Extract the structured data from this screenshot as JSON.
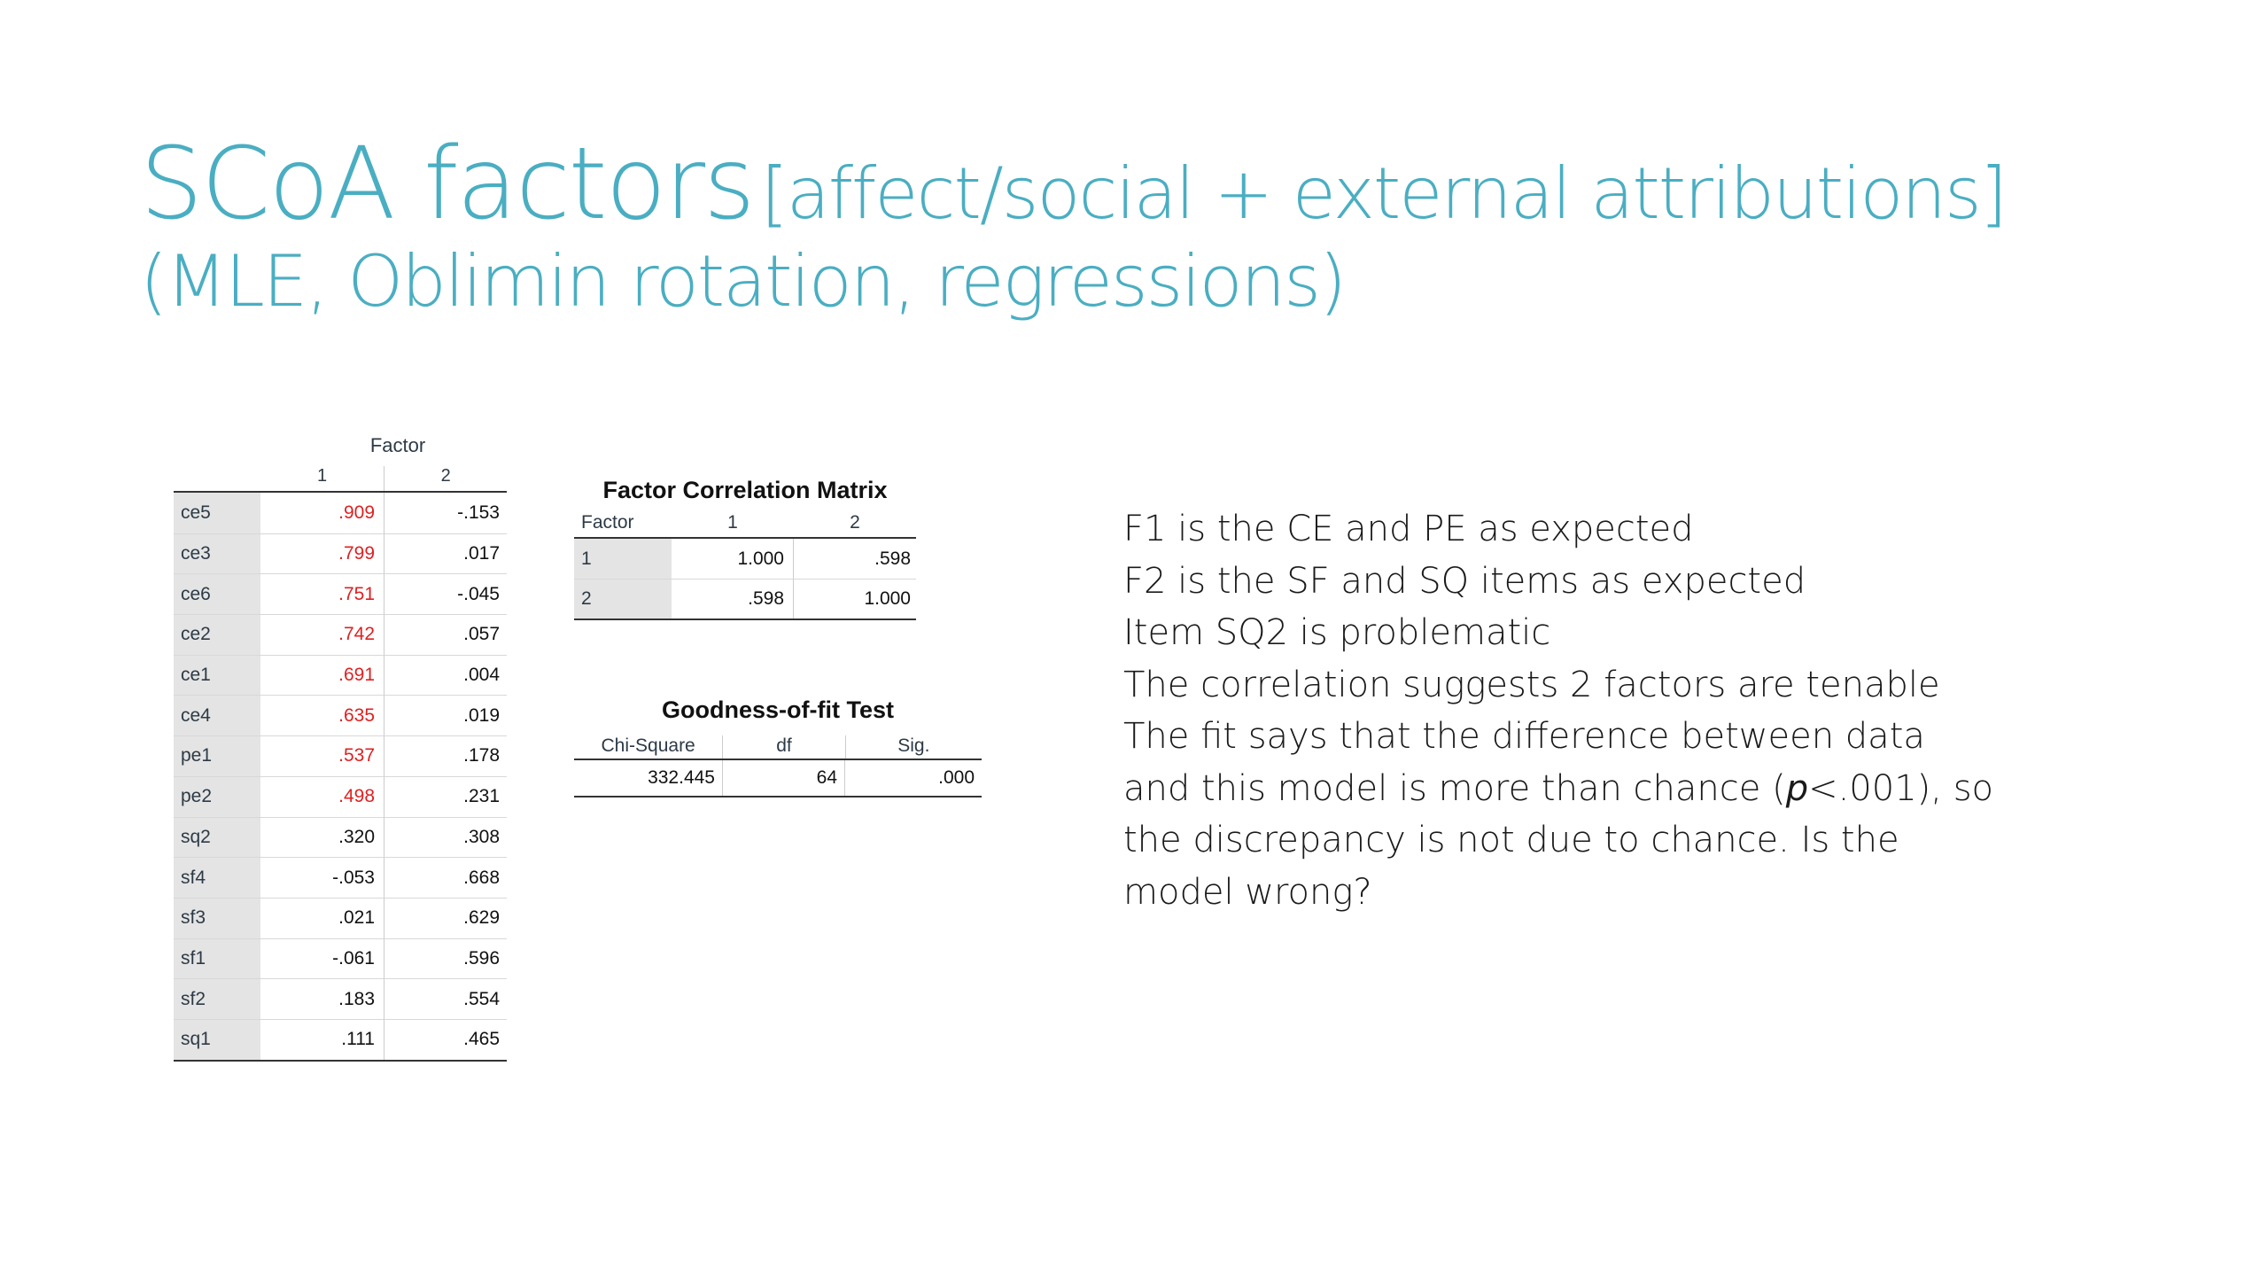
{
  "slide": {
    "title_main": "SCoA factors",
    "title_sub": "[affect/social + external attributions]",
    "title_line2": "(MLE, Oblimin rotation, regressions)"
  },
  "pattern_matrix": {
    "factor_header": "Factor",
    "col1": "1",
    "col2": "2",
    "rows": [
      {
        "item": "ce5",
        "f1": ".909",
        "f2": "-.153",
        "f1_highlight": true
      },
      {
        "item": "ce3",
        "f1": ".799",
        "f2": ".017",
        "f1_highlight": true
      },
      {
        "item": "ce6",
        "f1": ".751",
        "f2": "-.045",
        "f1_highlight": true
      },
      {
        "item": "ce2",
        "f1": ".742",
        "f2": ".057",
        "f1_highlight": true
      },
      {
        "item": "ce1",
        "f1": ".691",
        "f2": ".004",
        "f1_highlight": true
      },
      {
        "item": "ce4",
        "f1": ".635",
        "f2": ".019",
        "f1_highlight": true
      },
      {
        "item": "pe1",
        "f1": ".537",
        "f2": ".178",
        "f1_highlight": true
      },
      {
        "item": "pe2",
        "f1": ".498",
        "f2": ".231",
        "f1_highlight": true
      },
      {
        "item": "sq2",
        "f1": ".320",
        "f2": ".308",
        "f1_highlight": false
      },
      {
        "item": "sf4",
        "f1": "-.053",
        "f2": ".668",
        "f1_highlight": false
      },
      {
        "item": "sf3",
        "f1": ".021",
        "f2": ".629",
        "f1_highlight": false
      },
      {
        "item": "sf1",
        "f1": "-.061",
        "f2": ".596",
        "f1_highlight": false
      },
      {
        "item": "sf2",
        "f1": ".183",
        "f2": ".554",
        "f1_highlight": false
      },
      {
        "item": "sq1",
        "f1": ".111",
        "f2": ".465",
        "f1_highlight": false
      }
    ]
  },
  "correlation_matrix": {
    "title": "Factor Correlation Matrix",
    "header": [
      "Factor",
      "1",
      "2"
    ],
    "rows": [
      [
        "1",
        "1.000",
        ".598"
      ],
      [
        "2",
        ".598",
        "1.000"
      ]
    ]
  },
  "goodness_of_fit": {
    "title": "Goodness-of-fit Test",
    "header": [
      "Chi-Square",
      "df",
      "Sig."
    ],
    "values": [
      "332.445",
      "64",
      ".000"
    ]
  },
  "notes": {
    "line1": "F1 is the CE and PE as expected",
    "line2": "F2 is the SF and SQ items as expected",
    "line3": "Item SQ2 is problematic",
    "line4": "The correlation suggests 2 factors are tenable",
    "line5_a": "The fit says that the difference between data and this model is more than chance (",
    "line5_p": "p",
    "line5_b": "<.001), so the discrepancy is not due to chance. Is the model wrong?"
  },
  "colors": {
    "title": "#4aaec2",
    "highlight": "#e02020",
    "label_bg": "#e4e4e4"
  }
}
